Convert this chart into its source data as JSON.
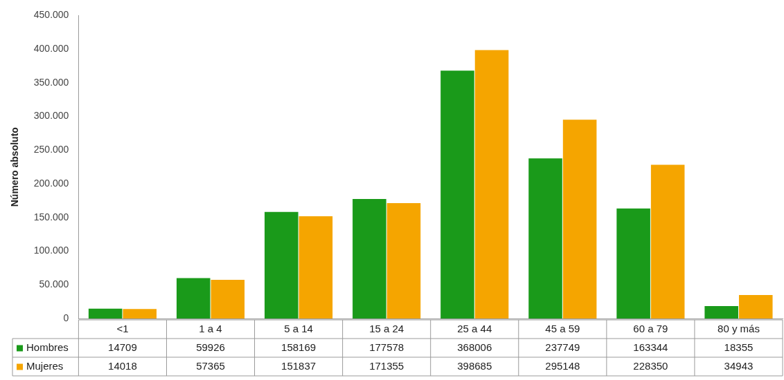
{
  "chart_data": {
    "type": "bar",
    "ylabel": "Número absoluto",
    "categories": [
      "<1",
      "1 a 4",
      "5 a 14",
      "15 a 24",
      "25 a 44",
      "45 a 59",
      "60 a 79",
      "80 y más"
    ],
    "series": [
      {
        "name": "Hombres",
        "color": "#1a9a1a",
        "values": [
          14709,
          59926,
          158169,
          177578,
          368006,
          237749,
          163344,
          18355
        ]
      },
      {
        "name": "Mujeres",
        "color": "#f5a500",
        "values": [
          14018,
          57365,
          151837,
          171355,
          398685,
          295148,
          228350,
          34943
        ]
      }
    ],
    "ylim": [
      0,
      450000
    ],
    "yticks": [
      {
        "value": 0,
        "label": "0"
      },
      {
        "value": 50000,
        "label": "50.000"
      },
      {
        "value": 100000,
        "label": "100.000"
      },
      {
        "value": 150000,
        "label": "150.000"
      },
      {
        "value": 200000,
        "label": "200.000"
      },
      {
        "value": 250000,
        "label": "250.000"
      },
      {
        "value": 300000,
        "label": "300.000"
      },
      {
        "value": 350000,
        "label": "350.000"
      },
      {
        "value": 400000,
        "label": "400.000"
      },
      {
        "value": 450000,
        "label": "450.000"
      }
    ],
    "grid": false,
    "legend": "bottom left",
    "data_labels": true
  }
}
